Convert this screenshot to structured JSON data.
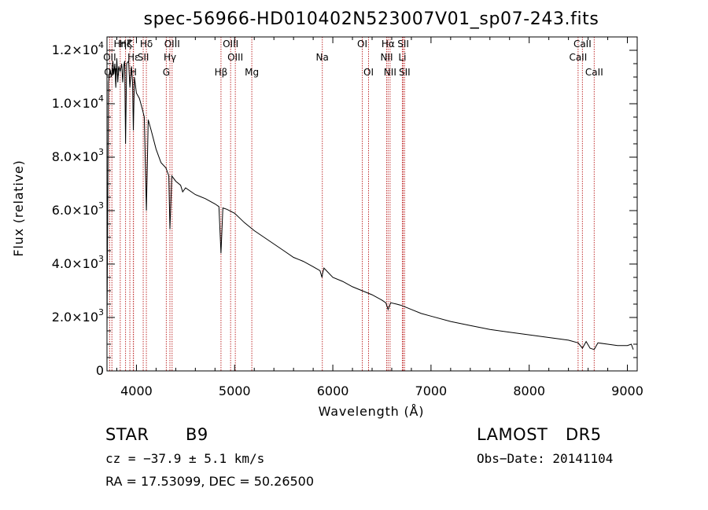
{
  "chart_data": {
    "type": "line",
    "title": "spec-56966-HD010402N523007V01_sp07-243.fits",
    "xlabel": "Wavelength (Å)",
    "ylabel": "Flux (relative)",
    "xlim": [
      3700,
      9100
    ],
    "ylim": [
      0,
      12500
    ],
    "x_ticks": [
      4000,
      5000,
      6000,
      7000,
      8000,
      9000
    ],
    "x_tick_labels": [
      "4000",
      "5000",
      "6000",
      "7000",
      "8000",
      "9000"
    ],
    "y_ticks": [
      0,
      2000,
      4000,
      6000,
      8000,
      10000,
      12000
    ],
    "y_tick_labels": [
      {
        "mant": "0",
        "exp": ""
      },
      {
        "mant": "2.0×10",
        "exp": "3"
      },
      {
        "mant": "4.0×10",
        "exp": "3"
      },
      {
        "mant": "6.0×10",
        "exp": "3"
      },
      {
        "mant": "8.0×10",
        "exp": "3"
      },
      {
        "mant": "1.0×10",
        "exp": "4"
      },
      {
        "mant": "1.2×10",
        "exp": "4"
      }
    ],
    "grid": false,
    "series": [
      {
        "color": "#000000",
        "x": [
          3700,
          3715,
          3730,
          3745,
          3760,
          3770,
          3780,
          3790,
          3800,
          3810,
          3820,
          3835,
          3850,
          3860,
          3870,
          3880,
          3889,
          3900,
          3920,
          3933,
          3950,
          3960,
          3968,
          3980,
          4000,
          4030,
          4060,
          4080,
          4101,
          4120,
          4150,
          4200,
          4250,
          4300,
          4330,
          4341,
          4360,
          4400,
          4450,
          4471,
          4500,
          4600,
          4700,
          4800,
          4840,
          4861,
          4880,
          4920,
          5000,
          5100,
          5200,
          5300,
          5400,
          5500,
          5600,
          5700,
          5800,
          5870,
          5890,
          5896,
          5910,
          6000,
          6100,
          6200,
          6300,
          6400,
          6500,
          6540,
          6563,
          6590,
          6650,
          6700,
          6800,
          6900,
          7000,
          7200,
          7400,
          7600,
          7800,
          8000,
          8200,
          8400,
          8498,
          8542,
          8580,
          8620,
          8662,
          8700,
          8800,
          8900,
          9000,
          9040,
          9060
        ],
        "y": [
          1500,
          10800,
          11300,
          11000,
          11600,
          11100,
          11500,
          10600,
          11700,
          10800,
          11400,
          11200,
          11500,
          10800,
          11400,
          11600,
          8500,
          11500,
          11600,
          10600,
          11400,
          10800,
          9000,
          11000,
          10400,
          10200,
          9800,
          9500,
          6000,
          9400,
          9000,
          8300,
          7800,
          7600,
          7300,
          5300,
          7300,
          7100,
          6950,
          6700,
          6850,
          6600,
          6450,
          6250,
          6150,
          4400,
          6100,
          6050,
          5900,
          5550,
          5250,
          5000,
          4750,
          4500,
          4250,
          4100,
          3900,
          3750,
          3500,
          3650,
          3850,
          3500,
          3350,
          3150,
          3000,
          2850,
          2650,
          2550,
          2300,
          2550,
          2500,
          2450,
          2300,
          2150,
          2050,
          1850,
          1700,
          1550,
          1450,
          1350,
          1250,
          1150,
          1050,
          850,
          1100,
          850,
          800,
          1050,
          1000,
          950,
          950,
          1000,
          800
        ]
      }
    ],
    "spectral_lines": [
      {
        "label": "Hη",
        "x": 3835,
        "row": 0
      },
      {
        "label": "Hζ",
        "x": 3889,
        "row": 0
      },
      {
        "label": "K",
        "x": 3933,
        "row": 0
      },
      {
        "label": "Hδ",
        "x": 4101,
        "row": 0
      },
      {
        "label": "OIII",
        "x": 4363,
        "row": 0
      },
      {
        "label": "OIII",
        "x": 4959,
        "row": 0
      },
      {
        "label": "OI",
        "x": 6300,
        "row": 0
      },
      {
        "label": "Hα",
        "x": 6563,
        "row": 0
      },
      {
        "label": "SII",
        "x": 6717,
        "row": 0
      },
      {
        "label": "CaII",
        "x": 8542,
        "row": 0
      },
      {
        "label": "OII",
        "x": 3727,
        "row": 1
      },
      {
        "label": "Hε",
        "x": 3970,
        "row": 1
      },
      {
        "label": "SII",
        "x": 4069,
        "row": 1
      },
      {
        "label": "Hγ",
        "x": 4341,
        "row": 1
      },
      {
        "label": "OIII",
        "x": 5007,
        "row": 1
      },
      {
        "label": "Na",
        "x": 5893,
        "row": 1
      },
      {
        "label": "NII",
        "x": 6548,
        "row": 1
      },
      {
        "label": "Li",
        "x": 6708,
        "row": 1
      },
      {
        "label": "CaII",
        "x": 8498,
        "row": 1
      },
      {
        "label": "OIII",
        "x": 3750,
        "row": 2
      },
      {
        "label": "H",
        "x": 3968,
        "row": 2
      },
      {
        "label": "G",
        "x": 4304,
        "row": 2
      },
      {
        "label": "Hβ",
        "x": 4861,
        "row": 2
      },
      {
        "label": "Mg",
        "x": 5175,
        "row": 2
      },
      {
        "label": "OI",
        "x": 6364,
        "row": 2
      },
      {
        "label": "NII",
        "x": 6583,
        "row": 2
      },
      {
        "label": "SII",
        "x": 6731,
        "row": 2
      },
      {
        "label": "CaII",
        "x": 8662,
        "row": 2
      }
    ]
  },
  "info": {
    "object_class": "STAR",
    "subclass": "B9",
    "survey": "LAMOST",
    "data_release": "DR5",
    "cz_text": "cz = −37.9 ± 5.1 km/s",
    "obs_date_text": "Obs−Date: 20141104",
    "coords_text": "RA =  17.53099, DEC =  50.26500"
  }
}
